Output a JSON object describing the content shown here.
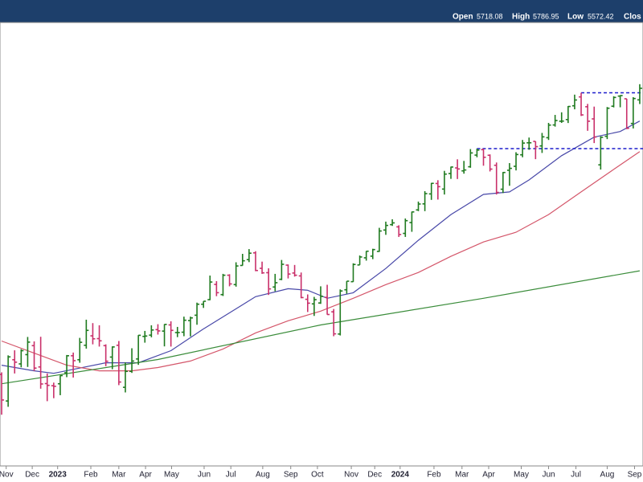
{
  "chart_data": {
    "type": "ohlc",
    "header": [
      {
        "label": "Open",
        "value": 5718.08
      },
      {
        "label": "High",
        "value": 5786.95
      },
      {
        "label": "Low",
        "value": 5572.42
      },
      {
        "label": "Clos"
      }
    ],
    "open": [
      3901,
      3766,
      3978,
      3956,
      4005,
      4053,
      3940,
      3854,
      3843,
      3853,
      3910,
      3999,
      3978,
      4055,
      4106,
      4091,
      4053,
      3992,
      4055,
      3835,
      3917,
      3982,
      4103,
      4110,
      4140,
      4132,
      4166,
      4124,
      4126,
      4190,
      4220,
      4282,
      4308,
      4396,
      4337,
      4450,
      4395,
      4508,
      4543,
      4584,
      4491,
      4465,
      4381,
      4426,
      4510,
      4463,
      4446,
      4310,
      4284,
      4289,
      4321,
      4239,
      4116,
      4365,
      4412,
      4511,
      4554,
      4564,
      4593,
      4725,
      4759,
      4745,
      4704,
      4772,
      4853,
      4892,
      4957,
      5026,
      4989,
      5093,
      5131,
      5111,
      5139,
      5219,
      5257,
      5218,
      5149,
      4988,
      5115,
      5142,
      5221,
      5305,
      5315,
      5283,
      5341,
      5432,
      5459,
      5471,
      5572,
      5638,
      5565,
      5476,
      5152,
      5351,
      5569,
      5644,
      5624,
      5443,
      5616
    ],
    "high": [
      3912,
      4001,
      4028,
      4034,
      4100,
      4076,
      4101,
      3906,
      3859,
      3896,
      4003,
      4016,
      4095,
      4195,
      4176,
      4164,
      4060,
      4049,
      4078,
      3964,
      4039,
      4110,
      4133,
      4164,
      4170,
      4170,
      4186,
      4155,
      4212,
      4212,
      4291,
      4299,
      4448,
      4415,
      4458,
      4456,
      4527,
      4578,
      4607,
      4594,
      4531,
      4491,
      4458,
      4541,
      4514,
      4511,
      4466,
      4338,
      4324,
      4385,
      4394,
      4255,
      4367,
      4415,
      4521,
      4568,
      4595,
      4609,
      4739,
      4778,
      4793,
      4755,
      4798,
      4842,
      4907,
      4975,
      5030,
      5048,
      5111,
      5140,
      5190,
      5179,
      5261,
      5264,
      5264,
      5224,
      5168,
      5103,
      5164,
      5239,
      5325,
      5342,
      5315,
      5375,
      5447,
      5505,
      5524,
      5570,
      5655,
      5669,
      5586,
      5566,
      5351,
      5563,
      5643,
      5651,
      5624,
      5636,
      5734
    ],
    "low": [
      3698,
      3737,
      3906,
      3938,
      3940,
      3919,
      3828,
      3765,
      3780,
      3795,
      3887,
      3885,
      3962,
      4037,
      4060,
      4048,
      3944,
      3928,
      3846,
      3809,
      3909,
      3951,
      4069,
      4098,
      4113,
      4049,
      4048,
      4099,
      4104,
      4103,
      4167,
      4261,
      4305,
      4328,
      4329,
      4385,
      4383,
      4507,
      4528,
      4474,
      4458,
      4335,
      4356,
      4421,
      4431,
      4442,
      4316,
      4238,
      4216,
      4284,
      4223,
      4104,
      4108,
      4342,
      4411,
      4511,
      4537,
      4546,
      4590,
      4695,
      4751,
      4682,
      4682,
      4714,
      4845,
      4845,
      4918,
      4920,
      4953,
      5057,
      5056,
      5092,
      5132,
      5204,
      5146,
      5107,
      4953,
      4963,
      5011,
      5114,
      5204,
      5256,
      5191,
      5234,
      5325,
      5420,
      5447,
      5446,
      5546,
      5497,
      5390,
      5303,
      5120,
      5331,
      5560,
      5561,
      5402,
      5407,
      5585
    ],
    "close": [
      3771,
      3993,
      3965,
      4026,
      4072,
      3934,
      3852,
      3845,
      3840,
      3895,
      3999,
      3973,
      4071,
      4136,
      4090,
      4079,
      3970,
      4046,
      3862,
      3917,
      3971,
      4109,
      4105,
      4138,
      4133,
      4169,
      4136,
      4124,
      4192,
      4205,
      4282,
      4299,
      4410,
      4348,
      4450,
      4399,
      4505,
      4536,
      4582,
      4478,
      4464,
      4370,
      4406,
      4515,
      4457,
      4450,
      4320,
      4288,
      4308,
      4327,
      4224,
      4117,
      4358,
      4415,
      4514,
      4559,
      4594,
      4604,
      4719,
      4754,
      4770,
      4697,
      4784,
      4840,
      4891,
      4959,
      5027,
      5005,
      5089,
      5137,
      5124,
      5117,
      5234,
      5254,
      5204,
      5123,
      4967,
      5100,
      5128,
      5223,
      5303,
      5305,
      5278,
      5347,
      5431,
      5464,
      5460,
      5567,
      5615,
      5505,
      5459,
      5346,
      5344,
      5554,
      5634,
      5648,
      5408,
      5626,
      5703
    ],
    "up_color": "#1f7a1f",
    "down_color": "#c9306a",
    "overlays": [
      {
        "color": "#4848a8",
        "x": [
          0,
          5,
          8,
          16,
          21,
          26,
          31,
          36,
          39,
          44,
          47,
          50,
          54,
          59,
          64,
          69,
          74,
          78,
          81,
          86,
          91,
          95,
          98
        ],
        "values": [
          3949,
          3920,
          3907,
          3962,
          3962,
          4026,
          4144,
          4256,
          4325,
          4371,
          4362,
          4316,
          4348,
          4490,
          4661,
          4823,
          4954,
          4970,
          5050,
          5215,
          5345,
          5385,
          5460
        ]
      },
      {
        "color": "#d4566a",
        "x": [
          0,
          5,
          10,
          15,
          20,
          24,
          29,
          34,
          39,
          44,
          49,
          54,
          59,
          64,
          69,
          74,
          79,
          84,
          89,
          94,
          98
        ],
        "values": [
          4078,
          4013,
          3949,
          3920,
          3920,
          3937,
          3971,
          4035,
          4122,
          4189,
          4243,
          4316,
          4395,
          4466,
          4563,
          4651,
          4711,
          4823,
          4970,
          5121,
          5243
        ]
      },
      {
        "color": "#3a8c3a",
        "x": [
          0,
          24,
          49,
          74,
          98
        ],
        "values": [
          3853,
          3979,
          4166,
          4316,
          4476
        ]
      }
    ],
    "hlines": [
      {
        "value": 5669,
        "from": 89,
        "color": "#1c1ccc"
      },
      {
        "value": 5264,
        "from": 73,
        "color": "#1c1ccc"
      }
    ],
    "xlim": [
      -0.25,
      98.5
    ],
    "ylim": [
      3455,
      6210
    ],
    "log_scale": true,
    "xticks": [
      {
        "value": 0.7,
        "label": "Nov"
      },
      {
        "value": 4.7,
        "label": "Dec"
      },
      {
        "value": 8.6,
        "label": "2023"
      },
      {
        "value": 13.7,
        "label": "Feb"
      },
      {
        "value": 18,
        "label": "Mar"
      },
      {
        "value": 22.1,
        "label": "Apr"
      },
      {
        "value": 26.1,
        "label": "May"
      },
      {
        "value": 31.1,
        "label": "Jun"
      },
      {
        "value": 35.2,
        "label": "Jul"
      },
      {
        "value": 40.1,
        "label": "Aug"
      },
      {
        "value": 44.4,
        "label": "Sep"
      },
      {
        "value": 48.5,
        "label": "Oct"
      },
      {
        "value": 53.7,
        "label": "Nov"
      },
      {
        "value": 57.3,
        "label": "Dec"
      },
      {
        "value": 61.2,
        "label": "2024"
      },
      {
        "value": 66.4,
        "label": "Feb"
      },
      {
        "value": 70.7,
        "label": "Mar"
      },
      {
        "value": 74.8,
        "label": "Apr"
      },
      {
        "value": 79.8,
        "label": "May"
      },
      {
        "value": 84,
        "label": "Jun"
      },
      {
        "value": 88.2,
        "label": "Jul"
      },
      {
        "value": 93,
        "label": "Aug"
      },
      {
        "value": 97.2,
        "label": "Sep"
      }
    ]
  }
}
